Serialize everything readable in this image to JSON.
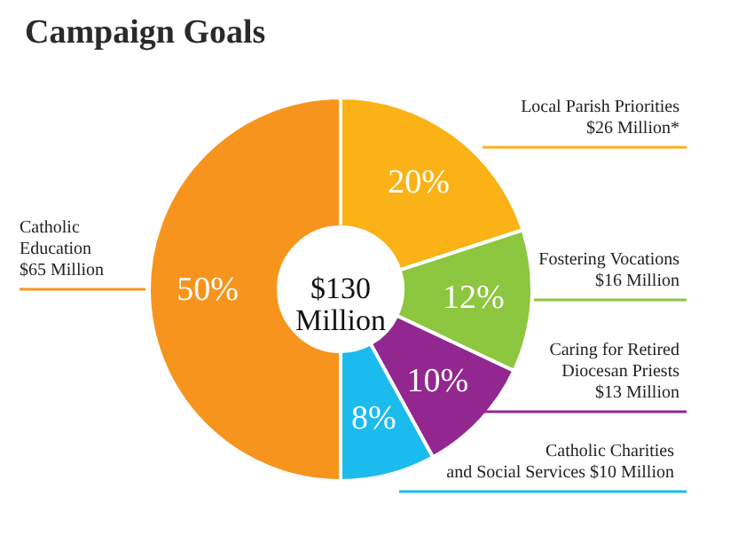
{
  "chart_data": {
    "type": "donut",
    "title": "Campaign Goals",
    "categories": [
      "Local Parish Priorities\n$26 Million*",
      "Fostering Vocations\n$16 Million",
      "Caring for Retired\nDiocesan Priests\n$13 Million",
      "Catholic Charities\nand Social Services $10 Million",
      "Catholic\nEducation\n$65 Million"
    ],
    "values": [
      20,
      12,
      10,
      8,
      50
    ],
    "value_labels": [
      "20%",
      "12%",
      "10%",
      "8%",
      "50%"
    ],
    "colors": [
      "#fbb216",
      "#8dc63f",
      "#92278f",
      "#1cbbed",
      "#f7941d"
    ],
    "annotations": [
      "$130\nMillion"
    ]
  }
}
